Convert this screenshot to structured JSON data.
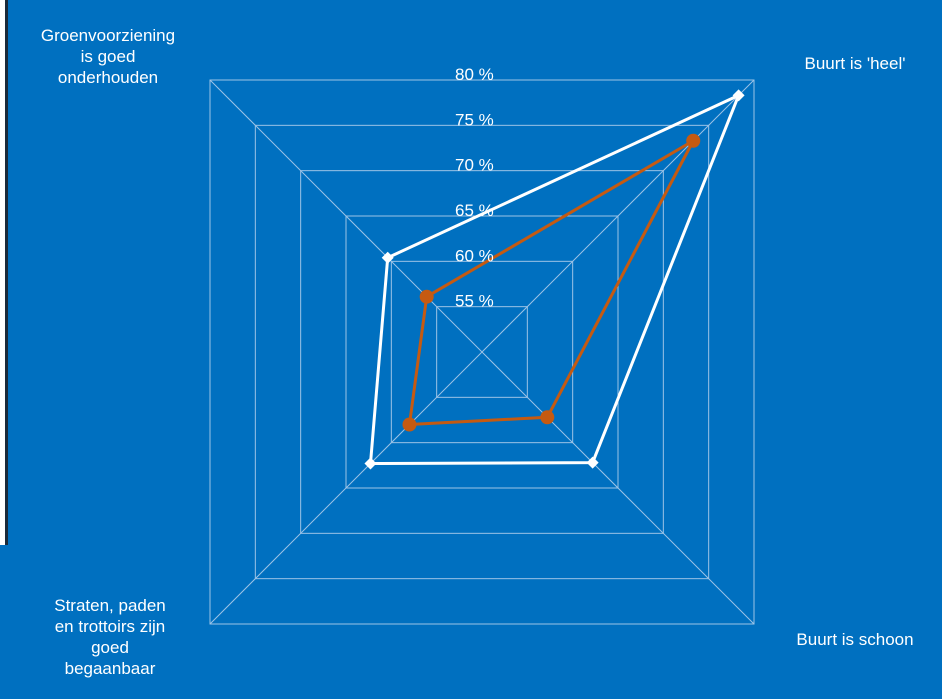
{
  "chart_data": {
    "type": "radar",
    "axes": [
      "Groenvoorziening is goed onderhouden",
      "Buurt is 'heel'",
      "Buurt is schoon",
      "Straten, paden en trottoirs zijn goed begaanbaar"
    ],
    "axis_display": [
      "Groenvoorziening\nis goed\nonderhouden",
      "Buurt is 'heel'",
      "Buurt is schoon",
      "Straten, paden\nen trottoirs zijn\ngoed\nbegaanbaar"
    ],
    "ticks": [
      55,
      60,
      65,
      70,
      75,
      80
    ],
    "tick_labels": [
      "55 %",
      "60 %",
      "65 %",
      "70 %",
      "75 %",
      "80 %"
    ],
    "ylim": [
      50,
      80
    ],
    "grid": true,
    "series": [
      {
        "values": [
          60.4,
          78.3,
          62.2,
          62.3
        ],
        "color": "#ffffff",
        "marker": "diamond"
      },
      {
        "values": [
          56.1,
          73.3,
          57.2,
          58.0
        ],
        "color": "#C55A11",
        "marker": "circle"
      }
    ]
  },
  "colors": {
    "background": "#0070C0",
    "grid": "#9DC3E6"
  }
}
